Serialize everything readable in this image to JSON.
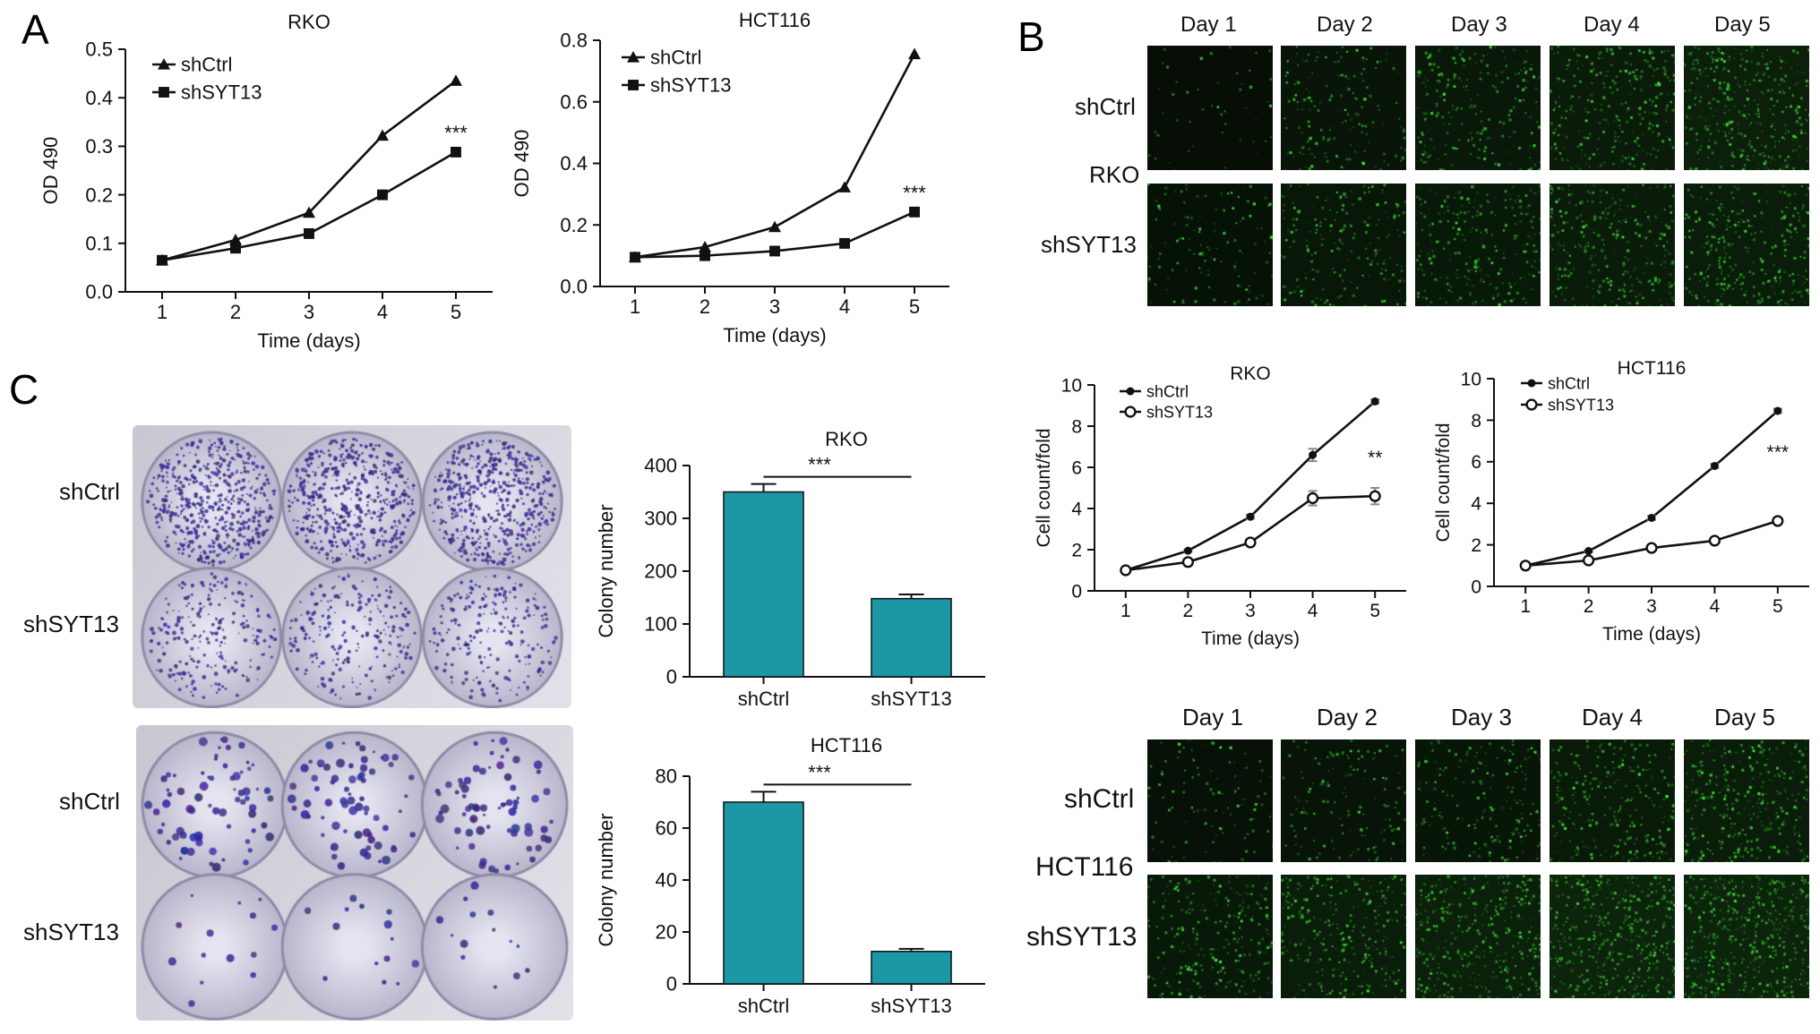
{
  "panel_letters": {
    "a": "A",
    "b": "B",
    "c": "C"
  },
  "chart_data": [
    {
      "id": "mtt-rko",
      "type": "line",
      "title": "RKO",
      "xlabel": "Time (days)",
      "ylabel": "OD 490",
      "x": [
        1,
        2,
        3,
        4,
        5
      ],
      "ylim": [
        0,
        0.5
      ],
      "yticks": [
        "0.0",
        "0.1",
        "0.2",
        "0.3",
        "0.4",
        "0.5"
      ],
      "series": [
        {
          "name": "shCtrl",
          "marker": "triangle",
          "values": [
            0.065,
            0.107,
            0.163,
            0.322,
            0.435
          ]
        },
        {
          "name": "shSYT13",
          "marker": "square",
          "values": [
            0.065,
            0.09,
            0.12,
            0.2,
            0.288
          ]
        }
      ],
      "annotation": "***",
      "legend": "top-left",
      "grid": false
    },
    {
      "id": "mtt-hct116",
      "type": "line",
      "title": "HCT116",
      "xlabel": "Time (days)",
      "ylabel": "OD 490",
      "x": [
        1,
        2,
        3,
        4,
        5
      ],
      "ylim": [
        0,
        0.8
      ],
      "yticks": [
        "0.0",
        "0.2",
        "0.4",
        "0.6",
        "0.8"
      ],
      "series": [
        {
          "name": "shCtrl",
          "marker": "triangle",
          "values": [
            0.095,
            0.128,
            0.193,
            0.322,
            0.755
          ]
        },
        {
          "name": "shSYT13",
          "marker": "square",
          "values": [
            0.095,
            0.1,
            0.115,
            0.14,
            0.242
          ]
        }
      ],
      "annotation": "***",
      "legend": "top-left",
      "grid": false
    },
    {
      "id": "count-rko",
      "type": "line",
      "title": "RKO",
      "xlabel": "Time (days)",
      "ylabel": "Cell count/fold",
      "x": [
        1,
        2,
        3,
        4,
        5
      ],
      "ylim": [
        0,
        10
      ],
      "yticks": [
        "0",
        "2",
        "4",
        "6",
        "8",
        "10"
      ],
      "series": [
        {
          "name": "shCtrl",
          "marker": "filled-circle",
          "values": [
            1.0,
            1.95,
            3.6,
            6.6,
            9.2
          ],
          "err": [
            0,
            0.05,
            0.1,
            0.3,
            0.1
          ]
        },
        {
          "name": "shSYT13",
          "marker": "open-circle",
          "values": [
            1.0,
            1.4,
            2.35,
            4.5,
            4.6
          ],
          "err": [
            0,
            0.05,
            0.1,
            0.35,
            0.4
          ]
        }
      ],
      "annotation": "**",
      "legend": "top-left",
      "grid": false
    },
    {
      "id": "count-hct116",
      "type": "line",
      "title": "HCT116",
      "xlabel": "Time (days)",
      "ylabel": "Cell count/fold",
      "x": [
        1,
        2,
        3,
        4,
        5
      ],
      "ylim": [
        0,
        10
      ],
      "yticks": [
        "0",
        "2",
        "4",
        "6",
        "8",
        "10"
      ],
      "series": [
        {
          "name": "shCtrl",
          "marker": "filled-circle",
          "values": [
            1.0,
            1.7,
            3.3,
            5.8,
            8.45
          ],
          "err": [
            0,
            0.05,
            0.1,
            0.1,
            0.1
          ]
        },
        {
          "name": "shSYT13",
          "marker": "open-circle",
          "values": [
            1.0,
            1.25,
            1.85,
            2.2,
            3.15
          ],
          "err": [
            0,
            0.05,
            0.08,
            0.1,
            0.1
          ]
        }
      ],
      "annotation": "***",
      "legend": "top-left",
      "grid": false
    },
    {
      "id": "colony-rko",
      "type": "bar",
      "title": "RKO",
      "ylabel": "Colony number",
      "categories": [
        "shCtrl",
        "shSYT13"
      ],
      "values": [
        350,
        148
      ],
      "err": [
        15,
        8
      ],
      "ylim": [
        0,
        400
      ],
      "yticks": [
        "0",
        "100",
        "200",
        "300",
        "400"
      ],
      "annotation": "***",
      "color": "#1b97a6",
      "grid": false
    },
    {
      "id": "colony-hct116",
      "type": "bar",
      "title": "HCT116",
      "ylabel": "Colony number",
      "categories": [
        "shCtrl",
        "shSYT13"
      ],
      "values": [
        70,
        12.5
      ],
      "err": [
        4,
        1
      ],
      "ylim": [
        0,
        80
      ],
      "yticks": [
        "0",
        "20",
        "40",
        "60",
        "80"
      ],
      "annotation": "***",
      "color": "#1b97a6",
      "grid": false
    }
  ],
  "micrographs": {
    "day_labels": [
      "Day 1",
      "Day 2",
      "Day 3",
      "Day 4",
      "Day 5"
    ],
    "rko": {
      "cell_line": "RKO",
      "rows": [
        "shCtrl",
        "shSYT13"
      ]
    },
    "hct116": {
      "cell_line": "HCT116",
      "rows": [
        "shCtrl",
        "shSYT13"
      ]
    }
  },
  "colony_plates": {
    "rko_rows": [
      "shCtrl",
      "shSYT13"
    ],
    "hct116_rows": [
      "shCtrl",
      "shSYT13"
    ]
  }
}
